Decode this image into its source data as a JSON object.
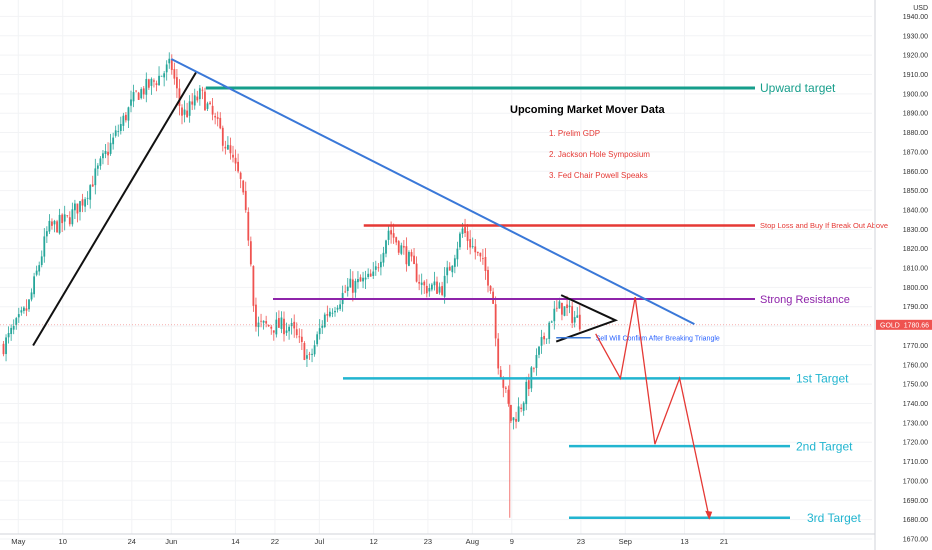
{
  "chart_data": {
    "type": "candlestick",
    "instrument": "GOLD",
    "currency": "USD",
    "last_price_label": "1780.66",
    "ylim": [
      1670,
      1940
    ],
    "y_ticks": [
      1670,
      1680,
      1690,
      1700,
      1710,
      1720,
      1730,
      1740,
      1750,
      1760,
      1770,
      1780,
      1790,
      1800,
      1810,
      1820,
      1830,
      1840,
      1850,
      1860,
      1870,
      1880,
      1890,
      1900,
      1910,
      1920,
      1930,
      1940
    ],
    "x_ticks": [
      "May",
      "10",
      "24",
      "Jun",
      "14",
      "22",
      "Jul",
      "12",
      "23",
      "Aug",
      "9",
      "23",
      "Sep",
      "13",
      "21"
    ],
    "price_path": [
      [
        "2021-04-28",
        1770
      ],
      [
        "2021-05-03",
        1790
      ],
      [
        "2021-05-07",
        1830
      ],
      [
        "2021-05-11",
        1835
      ],
      [
        "2021-05-14",
        1845
      ],
      [
        "2021-05-18",
        1865
      ],
      [
        "2021-05-21",
        1880
      ],
      [
        "2021-05-25",
        1900
      ],
      [
        "2021-05-28",
        1905
      ],
      [
        "2021-06-01",
        1915
      ],
      [
        "2021-06-03",
        1890
      ],
      [
        "2021-06-04",
        1890
      ],
      [
        "2021-06-07",
        1900
      ],
      [
        "2021-06-11",
        1880
      ],
      [
        "2021-06-15",
        1855
      ],
      [
        "2021-06-17",
        1820
      ],
      [
        "2021-06-18",
        1780
      ],
      [
        "2021-06-22",
        1780
      ],
      [
        "2021-06-25",
        1780
      ],
      [
        "2021-06-29",
        1762
      ],
      [
        "2021-07-02",
        1785
      ],
      [
        "2021-07-07",
        1800
      ],
      [
        "2021-07-12",
        1805
      ],
      [
        "2021-07-15",
        1830
      ],
      [
        "2021-07-19",
        1815
      ],
      [
        "2021-07-22",
        1800
      ],
      [
        "2021-07-26",
        1800
      ],
      [
        "2021-07-30",
        1830
      ],
      [
        "2021-08-03",
        1812
      ],
      [
        "2021-08-05",
        1800
      ],
      [
        "2021-08-06",
        1765
      ],
      [
        "2021-08-09",
        1730
      ],
      [
        "2021-08-11",
        1740
      ],
      [
        "2021-08-13",
        1755
      ],
      [
        "2021-08-17",
        1785
      ],
      [
        "2021-08-19",
        1790
      ],
      [
        "2021-08-23",
        1782
      ]
    ],
    "levels": [
      {
        "name": "Upward target",
        "value": 1903
      },
      {
        "name": "Stop Loss and Buy If Break Out Above",
        "value": 1832
      },
      {
        "name": "Strong Resistance",
        "value": 1794
      },
      {
        "name": "1st Target",
        "value": 1753
      },
      {
        "name": "2nd Target",
        "value": 1718
      },
      {
        "name": "3rd Target",
        "value": 1681
      }
    ],
    "annotations": {
      "box_title": "Upcoming Market Mover Data",
      "box_items": [
        "1. Prelim GDP",
        "2. Jackson Hole Symposium",
        "3. Fed Chair Powell Speaks"
      ],
      "triangle_note": "Sell Will Confirm After Breaking Triangle"
    },
    "colors": {
      "up": "#26a69a",
      "down": "#ef5350",
      "upward_target": "#169e8b",
      "stop_loss": "#e53935",
      "strong_resistance": "#8e24aa",
      "targets": "#22b5d0",
      "trendline": "#3a78d8",
      "projection": "#e53935",
      "note": "#2962ff"
    }
  }
}
